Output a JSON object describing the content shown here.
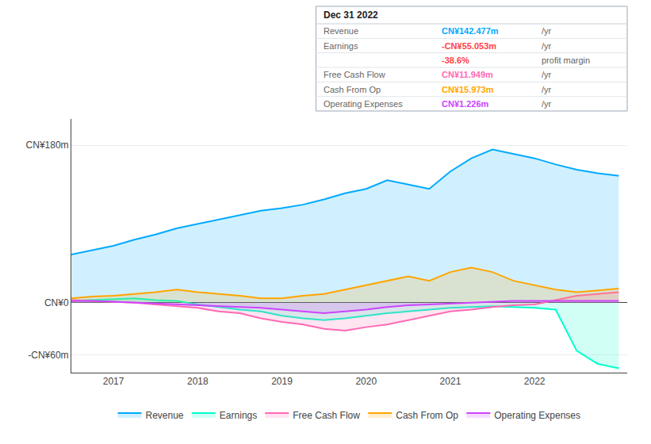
{
  "chart_data": {
    "type": "area",
    "x": [
      2016.5,
      2016.75,
      2017.0,
      2017.25,
      2017.5,
      2017.75,
      2018.0,
      2018.25,
      2018.5,
      2018.75,
      2019.0,
      2019.25,
      2019.5,
      2019.75,
      2020.0,
      2020.25,
      2020.5,
      2020.75,
      2021.0,
      2021.25,
      2021.5,
      2021.75,
      2022.0,
      2022.25,
      2022.5,
      2022.75,
      2023.0
    ],
    "series": [
      {
        "name": "Revenue",
        "color": "#00aaff",
        "values": [
          55,
          60,
          65,
          72,
          78,
          85,
          90,
          95,
          100,
          105,
          108,
          112,
          118,
          125,
          130,
          140,
          135,
          130,
          150,
          165,
          175,
          170,
          165,
          158,
          152,
          148,
          145
        ]
      },
      {
        "name": "Earnings",
        "color": "#00ffcc",
        "values": [
          2,
          3,
          4,
          5,
          3,
          2,
          -2,
          -5,
          -8,
          -10,
          -15,
          -18,
          -20,
          -18,
          -15,
          -12,
          -10,
          -8,
          -6,
          -5,
          -4,
          -5,
          -6,
          -8,
          -55,
          -70,
          -75
        ]
      },
      {
        "name": "Free Cash Flow",
        "color": "#ff69b4",
        "values": [
          3,
          2,
          1,
          0,
          -2,
          -4,
          -6,
          -10,
          -12,
          -18,
          -22,
          -25,
          -30,
          -32,
          -28,
          -25,
          -20,
          -15,
          -10,
          -8,
          -5,
          -3,
          -2,
          3,
          8,
          10,
          12
        ]
      },
      {
        "name": "Cash From Op",
        "color": "#ffa500",
        "values": [
          5,
          7,
          8,
          10,
          12,
          15,
          12,
          10,
          8,
          5,
          5,
          8,
          10,
          15,
          20,
          25,
          30,
          25,
          35,
          40,
          35,
          25,
          20,
          15,
          12,
          14,
          16
        ]
      },
      {
        "name": "Operating Expenses",
        "color": "#cc44ff",
        "values": [
          2,
          2,
          1,
          0,
          -1,
          -2,
          -3,
          -4,
          -5,
          -6,
          -8,
          -10,
          -12,
          -10,
          -8,
          -5,
          -3,
          -2,
          -1,
          0,
          1,
          2,
          2,
          2,
          2,
          2,
          2
        ]
      }
    ],
    "xlim": [
      2016.5,
      2023.1
    ],
    "xticks": [
      2017,
      2018,
      2019,
      2020,
      2021,
      2022
    ],
    "ylim": [
      -80,
      210
    ],
    "yticks": [
      {
        "value": 180,
        "label": "CN¥180m"
      },
      {
        "value": 0,
        "label": "CN¥0"
      },
      {
        "value": -60,
        "label": "-CN¥60m"
      }
    ],
    "grid": "y",
    "legend": "bottom",
    "annotations": [
      {
        "title": "Dec 31 2022",
        "rows": [
          {
            "label": "Revenue",
            "value": "CN¥142.477m",
            "color": "#00aaff",
            "suffix": "/yr"
          },
          {
            "label": "Earnings",
            "value": "-CN¥55.053m",
            "color": "#ff4444",
            "suffix": "/yr"
          },
          {
            "value": "-38.6%",
            "color": "#ff4444",
            "suffix": "profit margin"
          },
          {
            "label": "Free Cash Flow",
            "value": "CN¥11.949m",
            "color": "#ff69b4",
            "suffix": "/yr"
          },
          {
            "label": "Cash From Op",
            "value": "CN¥15.973m",
            "color": "#ffa500",
            "suffix": "/yr"
          },
          {
            "label": "Operating Expenses",
            "value": "CN¥1.226m",
            "color": "#cc44ff",
            "suffix": "/yr"
          }
        ]
      }
    ]
  }
}
